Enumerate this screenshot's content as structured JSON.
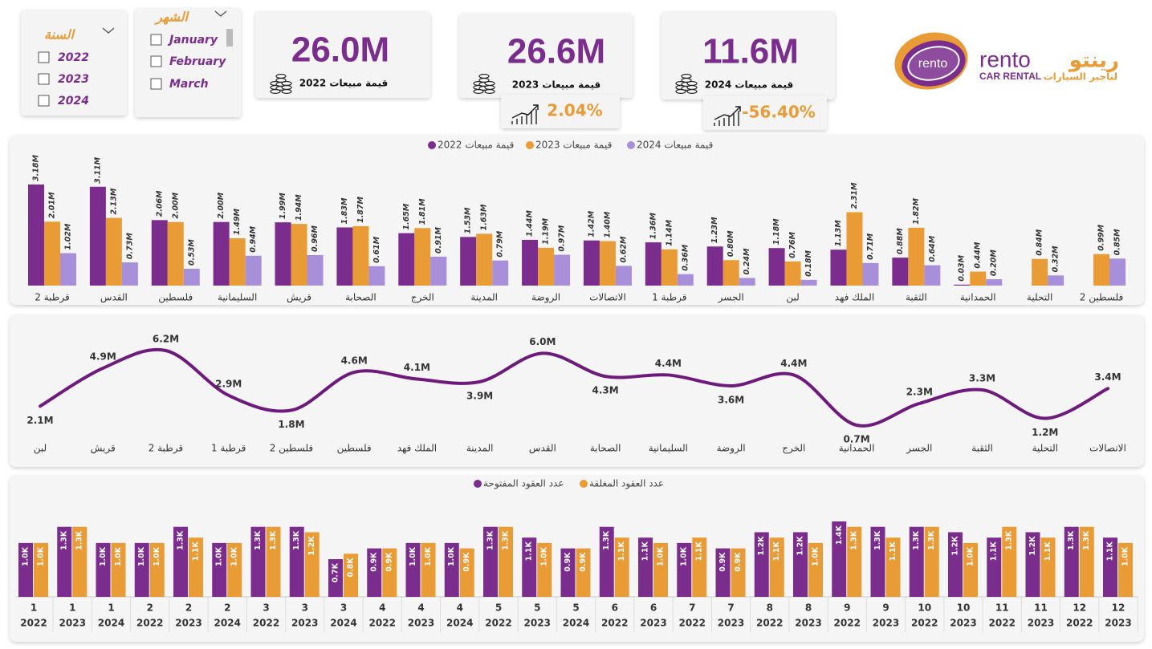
{
  "slicers": [
    {
      "title": "السنة",
      "items": [
        "2022",
        "2023",
        "2024"
      ]
    },
    {
      "title": "الشهر",
      "items": [
        "January",
        "February",
        "March"
      ]
    }
  ],
  "cards": [
    {
      "value": "26.0M",
      "label": "قيمة مبيعات 2022"
    },
    {
      "value": "26.6M",
      "label": "قيمة مبيعات 2023",
      "change": "2.04%"
    },
    {
      "value": "11.6M",
      "label": "قيمة مبيعات 2024",
      "change": "-56.40%"
    }
  ],
  "logo": {
    "mark": "rento",
    "name": "rento",
    "name_ar": "رينتو",
    "tagline": "CAR RENTAL",
    "tagline_ar": "لتاجير السيارات"
  },
  "chart_data": [
    {
      "type": "bar",
      "categories": [
        "قرطبة 2",
        "القدس",
        "فلسطين",
        "السليمانية",
        "قريش",
        "الصحابة",
        "الخرج",
        "المدينة",
        "الروضة",
        "الاتصالات",
        "قرطبة 1",
        "الجسر",
        "لبن",
        "الملك فهد",
        "الثقبة",
        "الحمدانية",
        "التحلية",
        "فلسطين 2"
      ],
      "series": [
        {
          "name": "قيمة مبيعات 2022",
          "color": "#7b2d8e",
          "values": [
            3.18,
            3.11,
            2.06,
            2.0,
            1.99,
            1.83,
            1.65,
            1.53,
            1.44,
            1.42,
            1.36,
            1.23,
            1.18,
            1.13,
            0.88,
            0.03,
            null,
            null
          ],
          "value_labels": [
            "3.18M",
            "3.11M",
            "2.06M",
            "2.00M",
            "1.99M",
            "1.83M",
            "1.65M",
            "1.53M",
            "1.44M",
            "1.42M",
            "1.36M",
            "1.23M",
            "1.18M",
            "1.13M",
            "0.88M",
            "0.03M",
            null,
            null
          ]
        },
        {
          "name": "قيمة مبيعات 2023",
          "color": "#e99b35",
          "values": [
            2.01,
            2.13,
            2.0,
            1.49,
            1.94,
            1.87,
            1.81,
            1.63,
            1.19,
            1.4,
            1.14,
            0.8,
            0.76,
            2.31,
            1.82,
            0.44,
            0.84,
            0.99
          ],
          "value_labels": [
            "2.01M",
            "2.13M",
            "2.00M",
            "1.49M",
            "1.94M",
            "1.87M",
            "1.81M",
            "1.63M",
            "1.19M",
            "1.40M",
            "1.14M",
            "0.80M",
            "0.76M",
            "2.31M",
            "1.82M",
            "0.44M",
            "0.84M",
            "0.99M"
          ]
        },
        {
          "name": "قيمة مبيعات 2024",
          "color": "#a78fd9",
          "values": [
            1.02,
            0.73,
            0.53,
            0.94,
            0.96,
            0.61,
            0.91,
            0.79,
            0.97,
            0.62,
            0.36,
            0.24,
            0.18,
            0.71,
            0.64,
            0.2,
            0.32,
            0.85
          ],
          "value_labels": [
            "1.02M",
            "0.73M",
            "0.53M",
            "0.94M",
            "0.96M",
            "0.61M",
            "0.91M",
            "0.79M",
            "0.97M",
            "0.62M",
            "0.36M",
            "0.24M",
            "0.18M",
            "0.71M",
            "0.64M",
            "0.20M",
            "0.32M",
            "0.85M"
          ]
        }
      ]
    },
    {
      "type": "line",
      "color": "#6e1a7c",
      "categories": [
        "لبن",
        "قريش",
        "قرطبة 2",
        "قرطبة 1",
        "فلسطين 2",
        "فلسطين",
        "الملك فهد",
        "المدينة",
        "القدس",
        "الصحابة",
        "السليمانية",
        "الروضة",
        "الخرج",
        "الحمدانية",
        "الجسر",
        "الثقبة",
        "التحلية",
        "الاتصالات"
      ],
      "values": [
        2.1,
        4.9,
        6.2,
        2.9,
        1.8,
        4.6,
        4.1,
        3.9,
        6.0,
        4.3,
        4.4,
        3.6,
        4.4,
        0.7,
        2.3,
        3.3,
        1.2,
        3.4
      ],
      "value_labels": [
        "2.1M",
        "4.9M",
        "6.2M",
        "2.9M",
        "1.8M",
        "4.6M",
        "4.1M",
        "3.9M",
        "6.0M",
        "4.3M",
        "4.4M",
        "3.6M",
        "4.4M",
        "0.7M",
        "2.3M",
        "3.3M",
        "1.2M",
        "3.4M"
      ]
    },
    {
      "type": "bar",
      "categories": [
        [
          "1",
          "2022"
        ],
        [
          "1",
          "2023"
        ],
        [
          "1",
          "2024"
        ],
        [
          "2",
          "2022"
        ],
        [
          "2",
          "2023"
        ],
        [
          "2",
          "2024"
        ],
        [
          "3",
          "2022"
        ],
        [
          "3",
          "2023"
        ],
        [
          "3",
          "2024"
        ],
        [
          "4",
          "2022"
        ],
        [
          "4",
          "2023"
        ],
        [
          "4",
          "2024"
        ],
        [
          "5",
          "2022"
        ],
        [
          "5",
          "2023"
        ],
        [
          "5",
          "2024"
        ],
        [
          "6",
          "2022"
        ],
        [
          "6",
          "2023"
        ],
        [
          "7",
          "2022"
        ],
        [
          "7",
          "2023"
        ],
        [
          "8",
          "2022"
        ],
        [
          "8",
          "2023"
        ],
        [
          "9",
          "2022"
        ],
        [
          "9",
          "2023"
        ],
        [
          "10",
          "2022"
        ],
        [
          "10",
          "2023"
        ],
        [
          "11",
          "2022"
        ],
        [
          "11",
          "2023"
        ],
        [
          "12",
          "2022"
        ],
        [
          "12",
          "2023"
        ]
      ],
      "series": [
        {
          "name": "عدد العقود المفتوحة",
          "color": "#7b2d8e",
          "values": [
            1.0,
            1.3,
            1.0,
            1.0,
            1.3,
            1.0,
            1.3,
            1.3,
            0.7,
            0.9,
            1.0,
            1.0,
            1.3,
            1.1,
            0.9,
            1.3,
            1.1,
            1.0,
            0.9,
            1.2,
            1.2,
            1.4,
            1.3,
            1.3,
            1.2,
            1.1,
            1.2,
            1.3,
            1.1
          ],
          "value_labels": [
            "1.0K",
            "1.3K",
            "1.0K",
            "1.0K",
            "1.3K",
            "1.0K",
            "1.3K",
            "1.3K",
            "0.7K",
            "0.9K",
            "1.0K",
            "1.0K",
            "1.3K",
            "1.1K",
            "0.9K",
            "1.3K",
            "1.1K",
            "1.0K",
            "0.9K",
            "1.2K",
            "1.2K",
            "1.4K",
            "1.3K",
            "1.3K",
            "1.2K",
            "1.1K",
            "1.2K",
            "1.3K",
            "1.1K"
          ]
        },
        {
          "name": "عدد العقود المغلقة",
          "color": "#e99b35",
          "values": [
            1.0,
            1.3,
            1.0,
            1.0,
            1.1,
            1.0,
            1.3,
            1.2,
            0.8,
            0.9,
            1.0,
            0.9,
            1.3,
            1.0,
            0.9,
            1.1,
            1.0,
            1.1,
            0.9,
            1.1,
            1.0,
            1.3,
            1.1,
            1.3,
            1.0,
            1.3,
            1.1,
            1.3,
            1.0
          ],
          "value_labels": [
            "1.0K",
            "1.3K",
            "1.0K",
            "1.0K",
            "1.1K",
            "1.0K",
            "1.3K",
            "1.2K",
            "0.8K",
            "0.9K",
            "1.0K",
            "0.9K",
            "1.3K",
            "1.0K",
            "0.9K",
            "1.1K",
            "1.0K",
            "1.1K",
            "0.9K",
            "1.1K",
            "1.0K",
            "1.3K",
            "1.1K",
            "1.3K",
            "1.0K",
            "1.3K",
            "1.1K",
            "1.3K",
            "1.0K"
          ]
        }
      ]
    }
  ]
}
